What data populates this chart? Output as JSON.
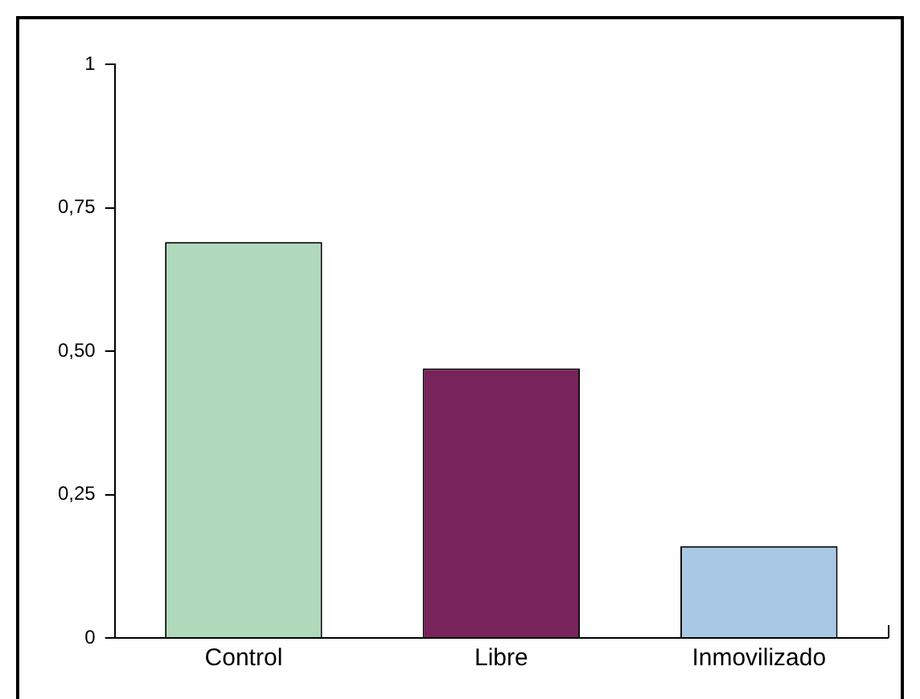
{
  "chart_data": {
    "type": "bar",
    "categories": [
      "Control",
      "Libre",
      "Inmovilizado"
    ],
    "values": [
      0.69,
      0.47,
      0.16
    ],
    "colors": [
      "#b0d9bc",
      "#78235a",
      "#a9c8e6"
    ],
    "ylim": [
      0,
      1
    ],
    "yticks": [
      0,
      {
        "value": 0.25,
        "label": "0,25"
      },
      {
        "value": 0.5,
        "label": "0,50"
      },
      {
        "value": 0.75,
        "label": "0,75"
      },
      1
    ],
    "grid": false,
    "legend": false
  }
}
